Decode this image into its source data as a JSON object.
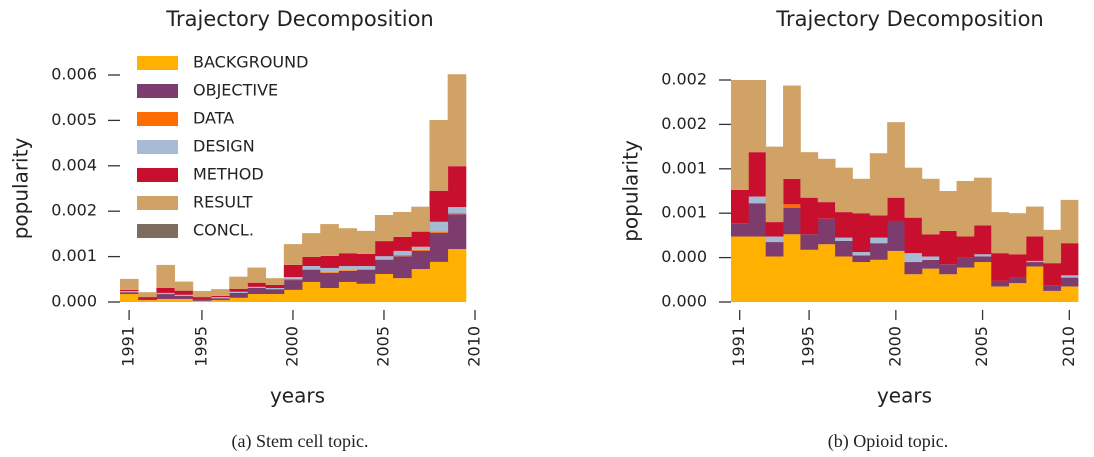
{
  "chart_data": [
    {
      "type": "stacked-step-area",
      "title": "Trajectory Decomposition",
      "xlabel": "years",
      "ylabel": "popularity",
      "caption": "(a) Stem cell topic.",
      "legend": "upper left",
      "x": [
        1991,
        1992,
        1993,
        1994,
        1995,
        1996,
        1997,
        1998,
        1999,
        2000,
        2001,
        2002,
        2003,
        2004,
        2005,
        2006,
        2007,
        2008,
        2009
      ],
      "xlim": [
        1990.5,
        2010
      ],
      "xticks": [
        1991,
        1995,
        2000,
        2005,
        2010
      ],
      "ylim": [
        0,
        0.006
      ],
      "yticks": [
        {
          "value": 0,
          "label": "0.000"
        },
        {
          "value": 0.0012,
          "label": "0.001"
        },
        {
          "value": 0.0024,
          "label": "0.002"
        },
        {
          "value": 0.0036,
          "label": "0.004"
        },
        {
          "value": 0.0048,
          "label": "0.005"
        },
        {
          "value": 0.006,
          "label": "0.006"
        }
      ],
      "series": [
        {
          "name": "BACKGROUND",
          "color": "#ffb000",
          "values": [
            0.00021,
            5e-05,
            8e-05,
            8e-05,
            3e-05,
            5e-05,
            0.00011,
            0.00021,
            0.00021,
            0.00032,
            0.00053,
            0.00037,
            0.00053,
            0.00048,
            0.00074,
            0.00063,
            0.00087,
            0.00106,
            0.0014
          ]
        },
        {
          "name": "OBJECTIVE",
          "color": "#7d3c6e",
          "values": [
            5e-05,
            3e-05,
            0.00013,
            8e-05,
            5e-05,
            5e-05,
            0.00013,
            0.00016,
            0.00013,
            0.00026,
            0.00032,
            0.0004,
            0.00029,
            0.00037,
            0.00037,
            0.00058,
            0.00048,
            0.00077,
            0.00092
          ]
        },
        {
          "name": "DATA",
          "color": "#ff6d00",
          "values": [
            0,
            0,
            0,
            0,
            0,
            0,
            0,
            0,
            0,
            3e-05,
            2e-05,
            2e-05,
            2e-05,
            2e-05,
            2e-05,
            3e-05,
            3e-05,
            3e-05,
            3e-05
          ]
        },
        {
          "name": "DESIGN",
          "color": "#a7bad3",
          "values": [
            3e-05,
            0,
            3e-05,
            3e-05,
            0,
            3e-05,
            3e-05,
            3e-05,
            3e-05,
            5e-05,
            8e-05,
            0.00011,
            0.00011,
            8e-05,
            8e-05,
            0.00011,
            8e-05,
            0.00026,
            0.00016
          ]
        },
        {
          "name": "METHOD",
          "color": "#c8102e",
          "values": [
            3e-05,
            5e-05,
            0.00013,
            0.00011,
            5e-05,
            3e-05,
            8e-05,
            0.00011,
            8e-05,
            0.00032,
            0.00024,
            0.00032,
            0.00034,
            0.00032,
            0.0004,
            0.00037,
            0.0004,
            0.00082,
            0.00108
          ]
        },
        {
          "name": "RESULT",
          "color": "#d1a266",
          "values": [
            0.00029,
            0.00013,
            0.00061,
            0.00024,
            0.00016,
            0.00018,
            0.00032,
            0.0004,
            0.00018,
            0.00055,
            0.00063,
            0.00084,
            0.00066,
            0.00061,
            0.00069,
            0.00066,
            0.00066,
            0.00187,
            0.00243
          ]
        },
        {
          "name": "CONCL.",
          "color": "#7f6c5f",
          "values": [
            0,
            0,
            0,
            0,
            0,
            0,
            0,
            0,
            0,
            0,
            0,
            0,
            0,
            0,
            0,
            0,
            0,
            0,
            0
          ]
        }
      ]
    },
    {
      "type": "stacked-step-area",
      "title": "Trajectory Decomposition",
      "xlabel": "years",
      "ylabel": "popularity",
      "caption": "(b) Opioid topic.",
      "x": [
        1991,
        1992,
        1993,
        1994,
        1995,
        1996,
        1997,
        1998,
        1999,
        2000,
        2001,
        2002,
        2003,
        2004,
        2005,
        2006,
        2007,
        2008,
        2009,
        2010
      ],
      "xlim": [
        1990.5,
        2010.5
      ],
      "xticks": [
        1991,
        1995,
        2000,
        2005,
        2010
      ],
      "ylim": [
        0,
        0.002
      ],
      "yticks": [
        {
          "value": 0,
          "label": "0.000"
        },
        {
          "value": 0.0004,
          "label": "0.000"
        },
        {
          "value": 0.0008,
          "label": "0.001"
        },
        {
          "value": 0.0012,
          "label": "0.001"
        },
        {
          "value": 0.0016,
          "label": "0.002"
        },
        {
          "value": 0.002,
          "label": "0.002"
        }
      ],
      "series": [
        {
          "color": "#ffb000",
          "values": [
            0.00059,
            0.00059,
            0.00041,
            0.00061,
            0.00047,
            0.00052,
            0.00041,
            0.00036,
            0.00038,
            0.00046,
            0.00025,
            0.0003,
            0.00025,
            0.00031,
            0.00036,
            0.00014,
            0.00017,
            0.00032,
            0.0001,
            0.00014
          ]
        },
        {
          "color": "#7d3c6e",
          "values": [
            0.00012,
            0.0003,
            0.00013,
            0.00024,
            0.00014,
            0.00023,
            0.00014,
            6e-05,
            0.00015,
            0.00027,
            0.00011,
            8e-05,
            9e-05,
            9e-05,
            5e-05,
            5e-05,
            5e-05,
            4e-05,
            5e-05,
            8e-05
          ]
        },
        {
          "color": "#ff6d00",
          "values": [
            0,
            0,
            0,
            3e-05,
            0,
            0,
            0,
            0,
            0,
            0,
            0,
            0,
            0,
            0,
            0,
            0,
            0,
            0,
            0,
            0
          ]
        },
        {
          "color": "#a7bad3",
          "values": [
            0,
            6e-05,
            5e-05,
            0,
            0,
            0,
            3e-05,
            3e-05,
            5e-05,
            0,
            8e-05,
            3e-05,
            0,
            0,
            2e-05,
            0,
            0,
            1e-05,
            0,
            2e-05
          ]
        },
        {
          "color": "#c8102e",
          "values": [
            0.0003,
            0.0004,
            0.00013,
            0.00023,
            0.00033,
            0.00015,
            0.00023,
            0.00035,
            0.0002,
            0.00021,
            0.00032,
            0.0002,
            0.0003,
            0.00019,
            0.00026,
            0.00025,
            0.00021,
            0.00022,
            0.0002,
            0.00029
          ]
        },
        {
          "color": "#d1a266",
          "values": [
            0.00099,
            0.00065,
            0.00068,
            0.00084,
            0.00041,
            0.00039,
            0.0004,
            0.00031,
            0.00056,
            0.00068,
            0.00045,
            0.0005,
            0.00036,
            0.0005,
            0.00043,
            0.00037,
            0.00037,
            0.00027,
            0.0003,
            0.00039
          ]
        },
        {
          "color": "#7f6c5f",
          "values": [
            0,
            0,
            0,
            0,
            0,
            0,
            0,
            0,
            0,
            0,
            0,
            0,
            0,
            0,
            0,
            0,
            0,
            0,
            0,
            0
          ]
        }
      ]
    }
  ]
}
